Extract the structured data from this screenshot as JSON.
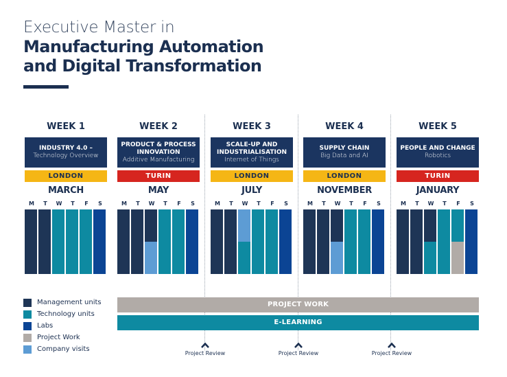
{
  "title": {
    "line1": "Executive Master in",
    "line2": "Manufacturing Automation",
    "line3": "and Digital Transformation"
  },
  "colors": {
    "management": "#1e3556",
    "technology": "#0e8aa1",
    "labs": "#0b4494",
    "project": "#b1aba7",
    "company": "#5d9cd4",
    "london": "#f5b615",
    "turin": "#d6251f"
  },
  "day_letters": [
    "M",
    "T",
    "W",
    "T",
    "F",
    "S"
  ],
  "weeks": [
    {
      "label": "WEEK 1",
      "topic": [
        "INDUSTRY 4.0 –"
      ],
      "subtitle": "Technology Overview",
      "location": "LONDON",
      "month": "MARCH",
      "days": [
        [
          [
            "management",
            1
          ]
        ],
        [
          [
            "management",
            1
          ]
        ],
        [
          [
            "technology",
            1
          ]
        ],
        [
          [
            "technology",
            1
          ]
        ],
        [
          [
            "technology",
            1
          ]
        ],
        [
          [
            "labs",
            1
          ]
        ]
      ]
    },
    {
      "label": "WEEK 2",
      "topic": [
        "PRODUCT & PROCESS",
        "INNOVATION"
      ],
      "subtitle": "Additive Manufacturing",
      "location": "TURIN",
      "month": "MAY",
      "days": [
        [
          [
            "management",
            1
          ]
        ],
        [
          [
            "management",
            1
          ]
        ],
        [
          [
            "management",
            0.5
          ],
          [
            "company",
            0.5
          ]
        ],
        [
          [
            "technology",
            1
          ]
        ],
        [
          [
            "technology",
            1
          ]
        ],
        [
          [
            "labs",
            1
          ]
        ]
      ]
    },
    {
      "label": "WEEK 3",
      "topic": [
        "SCALE-UP AND",
        "INDUSTRIALISATION"
      ],
      "subtitle": "Internet of Things",
      "location": "LONDON",
      "month": "JULY",
      "days": [
        [
          [
            "management",
            1
          ]
        ],
        [
          [
            "management",
            1
          ]
        ],
        [
          [
            "company",
            0.5
          ],
          [
            "technology",
            0.5
          ]
        ],
        [
          [
            "technology",
            1
          ]
        ],
        [
          [
            "technology",
            1
          ]
        ],
        [
          [
            "labs",
            1
          ]
        ]
      ]
    },
    {
      "label": "WEEK 4",
      "topic": [
        "SUPPLY CHAIN"
      ],
      "subtitle": "Big Data and AI",
      "location": "LONDON",
      "month": "NOVEMBER",
      "days": [
        [
          [
            "management",
            1
          ]
        ],
        [
          [
            "management",
            1
          ]
        ],
        [
          [
            "management",
            0.5
          ],
          [
            "company",
            0.5
          ]
        ],
        [
          [
            "technology",
            1
          ]
        ],
        [
          [
            "technology",
            1
          ]
        ],
        [
          [
            "labs",
            1
          ]
        ]
      ]
    },
    {
      "label": "WEEK 5",
      "topic": [
        "PEOPLE AND CHANGE"
      ],
      "subtitle": "Robotics",
      "location": "TURIN",
      "month": "JANUARY",
      "days": [
        [
          [
            "management",
            1
          ]
        ],
        [
          [
            "management",
            1
          ]
        ],
        [
          [
            "management",
            0.5
          ],
          [
            "technology",
            0.5
          ]
        ],
        [
          [
            "technology",
            1
          ]
        ],
        [
          [
            "technology",
            0.5
          ],
          [
            "project",
            0.5
          ]
        ],
        [
          [
            "labs",
            1
          ]
        ]
      ]
    }
  ],
  "legend": [
    {
      "key": "management",
      "label": "Management units"
    },
    {
      "key": "technology",
      "label": "Technology units"
    },
    {
      "key": "labs",
      "label": "Labs"
    },
    {
      "key": "project",
      "label": "Project Work"
    },
    {
      "key": "company",
      "label": "Company visits"
    }
  ],
  "bars": {
    "project_work": "PROJECT WORK",
    "e_learning": "E-LEARNING"
  },
  "reviews": [
    "Project Review",
    "Project Review",
    "Project Review"
  ]
}
